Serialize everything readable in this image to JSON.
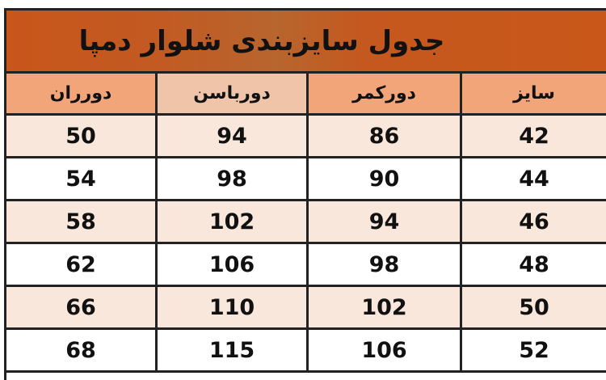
{
  "title": "جدول سایزبندی شلوار دمپا",
  "columns": [
    "دورران",
    "دورباسن",
    "دورکمر",
    "سایز"
  ],
  "rows": [
    [
      "50",
      "94",
      "86",
      "42"
    ],
    [
      "54",
      "98",
      "90",
      "44"
    ],
    [
      "58",
      "102",
      "94",
      "46"
    ],
    [
      "62",
      "106",
      "98",
      "48"
    ],
    [
      "66",
      "110",
      "102",
      "50"
    ],
    [
      "68",
      "115",
      "106",
      "52"
    ]
  ],
  "colors": {
    "title_bg": "#c9561b",
    "header_bg": "#f3a57a",
    "row_alt": "#f9e7dc"
  }
}
